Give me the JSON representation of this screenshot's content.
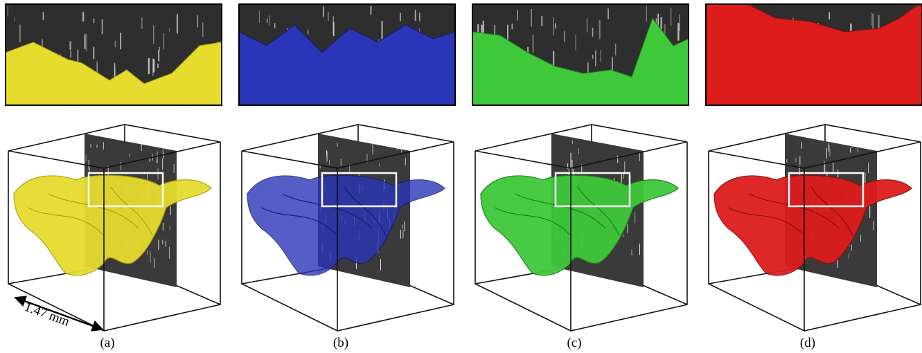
{
  "panels": [
    {
      "label": "(a)"
    },
    {
      "label": "(b)"
    },
    {
      "label": "(c)"
    },
    {
      "label": "(d)"
    }
  ],
  "scale_label": "1.47 mm"
}
